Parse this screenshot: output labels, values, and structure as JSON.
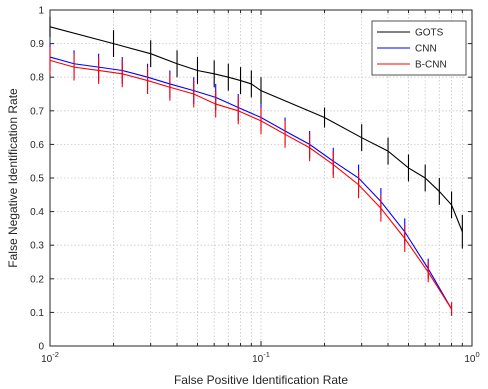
{
  "chart_data": {
    "type": "line",
    "title": "",
    "xlabel": "False Positive Identification Rate",
    "ylabel": "False Negative Identification Rate",
    "xscale": "log",
    "xlim": [
      0.01,
      1
    ],
    "ylim": [
      0,
      1
    ],
    "grid": true,
    "legend_position": "top-right",
    "x_ticks": [
      {
        "value": 0.01,
        "base": "10",
        "exp": "-2"
      },
      {
        "value": 0.1,
        "base": "10",
        "exp": "-1"
      },
      {
        "value": 1,
        "base": "10",
        "exp": "0"
      }
    ],
    "y_ticks": [
      "0",
      "0.1",
      "0.2",
      "0.3",
      "0.4",
      "0.5",
      "0.6",
      "0.7",
      "0.8",
      "0.9",
      "1"
    ],
    "series": [
      {
        "name": "GOTS",
        "color": "#000000",
        "x": [
          0.01,
          0.02,
          0.03,
          0.04,
          0.05,
          0.06,
          0.07,
          0.08,
          0.09,
          0.1,
          0.2,
          0.3,
          0.4,
          0.5,
          0.6,
          0.7,
          0.8,
          0.9
        ],
        "y": [
          0.95,
          0.9,
          0.87,
          0.84,
          0.82,
          0.81,
          0.8,
          0.79,
          0.78,
          0.76,
          0.68,
          0.62,
          0.58,
          0.53,
          0.5,
          0.46,
          0.42,
          0.34
        ],
        "err": [
          0.03,
          0.04,
          0.04,
          0.04,
          0.04,
          0.04,
          0.04,
          0.04,
          0.04,
          0.04,
          0.03,
          0.04,
          0.04,
          0.04,
          0.04,
          0.04,
          0.04,
          0.05
        ]
      },
      {
        "name": "CNN",
        "color": "#0000ff",
        "x": [
          0.01,
          0.013,
          0.017,
          0.022,
          0.029,
          0.037,
          0.048,
          0.061,
          0.078,
          0.1,
          0.13,
          0.17,
          0.22,
          0.29,
          0.37,
          0.48,
          0.62,
          0.8
        ],
        "y": [
          0.86,
          0.84,
          0.83,
          0.82,
          0.8,
          0.78,
          0.76,
          0.74,
          0.71,
          0.68,
          0.64,
          0.6,
          0.55,
          0.5,
          0.43,
          0.34,
          0.23,
          0.11
        ],
        "err": [
          0.04,
          0.04,
          0.04,
          0.04,
          0.04,
          0.04,
          0.04,
          0.04,
          0.04,
          0.04,
          0.04,
          0.04,
          0.04,
          0.04,
          0.04,
          0.04,
          0.03,
          0.02
        ]
      },
      {
        "name": "B-CNN",
        "color": "#ff0000",
        "x": [
          0.01,
          0.013,
          0.017,
          0.022,
          0.029,
          0.037,
          0.048,
          0.061,
          0.078,
          0.1,
          0.13,
          0.17,
          0.22,
          0.29,
          0.37,
          0.48,
          0.62,
          0.8
        ],
        "y": [
          0.85,
          0.83,
          0.82,
          0.81,
          0.79,
          0.77,
          0.75,
          0.72,
          0.7,
          0.67,
          0.63,
          0.59,
          0.54,
          0.48,
          0.41,
          0.32,
          0.22,
          0.11
        ],
        "err": [
          0.04,
          0.04,
          0.04,
          0.04,
          0.04,
          0.04,
          0.04,
          0.04,
          0.04,
          0.04,
          0.04,
          0.04,
          0.04,
          0.04,
          0.04,
          0.04,
          0.03,
          0.02
        ]
      }
    ]
  }
}
